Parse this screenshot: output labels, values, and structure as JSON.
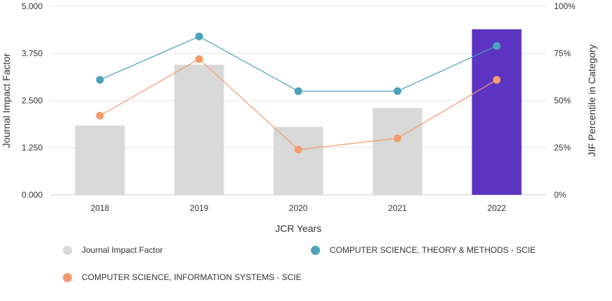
{
  "chart_data": {
    "type": "bar",
    "categories": [
      "2018",
      "2019",
      "2020",
      "2021",
      "2022"
    ],
    "xlabel": "JCR Years",
    "ylabel": "Journal Impact Factor",
    "y2label": "JIF Percentile in Category",
    "ylim": [
      0,
      5
    ],
    "y2lim": [
      0,
      100
    ],
    "yticks": [
      "0.000",
      "1.250",
      "2.500",
      "3.750",
      "5.000"
    ],
    "y2ticks": [
      "0%",
      "25%",
      "50%",
      "75%",
      "100%"
    ],
    "grid": true,
    "series": [
      {
        "name": "Journal Impact Factor",
        "type": "bar",
        "axis": "left",
        "values": [
          1.84,
          3.45,
          1.8,
          2.3,
          4.39
        ],
        "color": "#d9d9d9",
        "highlight_color": "#5c34c1",
        "highlight_index": 4
      },
      {
        "name": "COMPUTER SCIENCE, THEORY & METHODS - SCIE",
        "type": "line",
        "axis": "right",
        "values": [
          61,
          84,
          55,
          55,
          79
        ],
        "color": "#4aa3b8"
      },
      {
        "name": "COMPUTER SCIENCE, INFORMATION SYSTEMS - SCIE",
        "type": "line",
        "axis": "right",
        "values": [
          42,
          72,
          24,
          30,
          61
        ],
        "color": "#f59a6c"
      }
    ],
    "legend_position": "bottom"
  }
}
